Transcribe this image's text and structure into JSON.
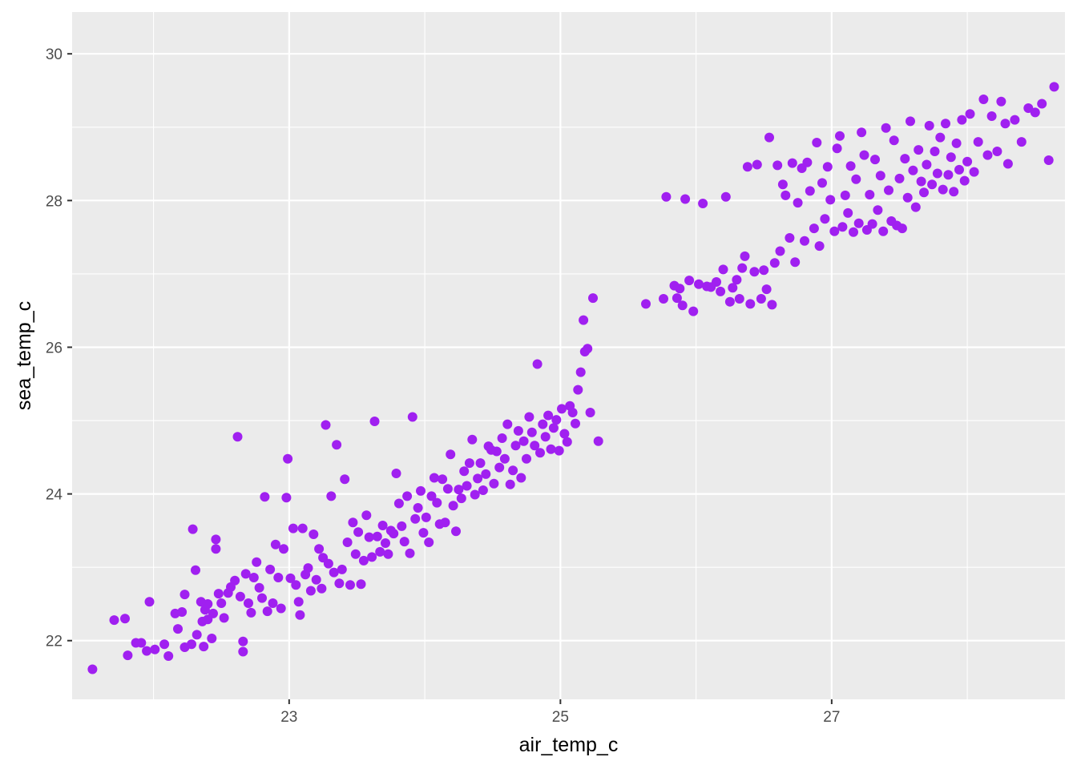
{
  "chart_data": {
    "type": "scatter",
    "title": "",
    "xlabel": "air_temp_c",
    "ylabel": "sea_temp_c",
    "xlim": [
      21.4,
      28.72
    ],
    "ylim": [
      21.2,
      30.57
    ],
    "x_ticks": [
      23,
      25,
      27
    ],
    "y_ticks": [
      22,
      24,
      26,
      28,
      30
    ],
    "grid": true,
    "legend": "none",
    "point_color": "#a020f0",
    "panel_background": "#ebebeb",
    "grid_color": "#ffffff",
    "points": [
      [
        21.55,
        21.61
      ],
      [
        21.79,
        22.3
      ],
      [
        21.71,
        22.28
      ],
      [
        21.81,
        21.8
      ],
      [
        21.87,
        21.97
      ],
      [
        21.91,
        21.97
      ],
      [
        21.95,
        21.86
      ],
      [
        21.97,
        22.53
      ],
      [
        22.01,
        21.88
      ],
      [
        22.08,
        21.95
      ],
      [
        22.11,
        21.79
      ],
      [
        22.16,
        22.37
      ],
      [
        22.18,
        22.16
      ],
      [
        22.21,
        22.39
      ],
      [
        22.23,
        21.91
      ],
      [
        22.23,
        22.63
      ],
      [
        22.28,
        21.95
      ],
      [
        22.29,
        23.52
      ],
      [
        22.31,
        22.96
      ],
      [
        22.32,
        22.08
      ],
      [
        22.35,
        22.53
      ],
      [
        22.36,
        22.26
      ],
      [
        22.37,
        21.92
      ],
      [
        22.38,
        22.42
      ],
      [
        22.4,
        22.29
      ],
      [
        22.4,
        22.5
      ],
      [
        22.43,
        22.03
      ],
      [
        22.44,
        22.37
      ],
      [
        22.46,
        23.38
      ],
      [
        22.46,
        23.25
      ],
      [
        22.48,
        22.64
      ],
      [
        22.5,
        22.51
      ],
      [
        22.52,
        22.31
      ],
      [
        22.55,
        22.65
      ],
      [
        22.57,
        22.73
      ],
      [
        22.6,
        22.82
      ],
      [
        22.62,
        24.78
      ],
      [
        22.64,
        22.6
      ],
      [
        22.66,
        21.85
      ],
      [
        22.66,
        21.99
      ],
      [
        22.68,
        22.91
      ],
      [
        22.7,
        22.51
      ],
      [
        22.72,
        22.38
      ],
      [
        22.74,
        22.86
      ],
      [
        22.76,
        23.07
      ],
      [
        22.78,
        22.72
      ],
      [
        22.8,
        22.58
      ],
      [
        22.82,
        23.96
      ],
      [
        22.84,
        22.4
      ],
      [
        22.86,
        22.97
      ],
      [
        22.88,
        22.51
      ],
      [
        22.9,
        23.31
      ],
      [
        22.92,
        22.86
      ],
      [
        22.94,
        22.44
      ],
      [
        22.96,
        23.25
      ],
      [
        22.98,
        23.95
      ],
      [
        22.99,
        24.48
      ],
      [
        23.01,
        22.85
      ],
      [
        23.03,
        23.53
      ],
      [
        23.05,
        22.76
      ],
      [
        23.07,
        22.53
      ],
      [
        23.08,
        22.35
      ],
      [
        23.1,
        23.53
      ],
      [
        23.12,
        22.9
      ],
      [
        23.14,
        22.99
      ],
      [
        23.16,
        22.68
      ],
      [
        23.18,
        23.45
      ],
      [
        23.2,
        22.83
      ],
      [
        23.22,
        23.25
      ],
      [
        23.24,
        22.71
      ],
      [
        23.25,
        23.13
      ],
      [
        23.27,
        24.94
      ],
      [
        23.29,
        23.05
      ],
      [
        23.31,
        23.97
      ],
      [
        23.33,
        22.93
      ],
      [
        23.35,
        24.67
      ],
      [
        23.37,
        22.78
      ],
      [
        23.39,
        22.97
      ],
      [
        23.41,
        24.2
      ],
      [
        23.43,
        23.34
      ],
      [
        23.45,
        22.76
      ],
      [
        23.47,
        23.61
      ],
      [
        23.49,
        23.18
      ],
      [
        23.51,
        23.48
      ],
      [
        23.53,
        22.77
      ],
      [
        23.55,
        23.09
      ],
      [
        23.57,
        23.71
      ],
      [
        23.59,
        23.41
      ],
      [
        23.61,
        23.14
      ],
      [
        23.63,
        24.99
      ],
      [
        23.65,
        23.42
      ],
      [
        23.67,
        23.21
      ],
      [
        23.69,
        23.57
      ],
      [
        23.71,
        23.33
      ],
      [
        23.73,
        23.18
      ],
      [
        23.75,
        23.5
      ],
      [
        23.77,
        23.46
      ],
      [
        23.79,
        24.28
      ],
      [
        23.81,
        23.87
      ],
      [
        23.83,
        23.56
      ],
      [
        23.85,
        23.35
      ],
      [
        23.87,
        23.97
      ],
      [
        23.89,
        23.19
      ],
      [
        23.91,
        25.05
      ],
      [
        23.93,
        23.66
      ],
      [
        23.95,
        23.81
      ],
      [
        23.97,
        24.04
      ],
      [
        23.99,
        23.47
      ],
      [
        24.01,
        23.68
      ],
      [
        24.03,
        23.34
      ],
      [
        24.05,
        23.97
      ],
      [
        24.07,
        24.22
      ],
      [
        24.09,
        23.88
      ],
      [
        24.11,
        23.59
      ],
      [
        24.13,
        24.2
      ],
      [
        24.15,
        23.61
      ],
      [
        24.17,
        24.07
      ],
      [
        24.19,
        24.54
      ],
      [
        24.21,
        23.84
      ],
      [
        24.23,
        23.49
      ],
      [
        24.25,
        24.06
      ],
      [
        24.27,
        23.94
      ],
      [
        24.29,
        24.31
      ],
      [
        24.31,
        24.11
      ],
      [
        24.33,
        24.42
      ],
      [
        24.35,
        24.74
      ],
      [
        24.37,
        23.99
      ],
      [
        24.39,
        24.21
      ],
      [
        24.41,
        24.42
      ],
      [
        24.43,
        24.05
      ],
      [
        24.45,
        24.27
      ],
      [
        24.47,
        24.65
      ],
      [
        24.49,
        24.6
      ],
      [
        24.51,
        24.14
      ],
      [
        24.53,
        24.58
      ],
      [
        24.55,
        24.36
      ],
      [
        24.57,
        24.76
      ],
      [
        24.59,
        24.48
      ],
      [
        24.61,
        24.95
      ],
      [
        24.63,
        24.13
      ],
      [
        24.65,
        24.32
      ],
      [
        24.67,
        24.66
      ],
      [
        24.69,
        24.86
      ],
      [
        24.71,
        24.22
      ],
      [
        24.73,
        24.72
      ],
      [
        24.75,
        24.48
      ],
      [
        24.77,
        25.05
      ],
      [
        24.79,
        24.84
      ],
      [
        24.81,
        24.66
      ],
      [
        24.83,
        25.77
      ],
      [
        24.85,
        24.56
      ],
      [
        24.87,
        24.95
      ],
      [
        24.89,
        24.78
      ],
      [
        24.91,
        25.07
      ],
      [
        24.93,
        24.61
      ],
      [
        24.95,
        24.9
      ],
      [
        24.97,
        25.01
      ],
      [
        24.99,
        24.59
      ],
      [
        25.01,
        25.16
      ],
      [
        25.03,
        24.82
      ],
      [
        25.05,
        24.71
      ],
      [
        25.07,
        25.2
      ],
      [
        25.09,
        25.11
      ],
      [
        25.11,
        24.96
      ],
      [
        25.13,
        25.42
      ],
      [
        25.15,
        25.66
      ],
      [
        25.17,
        26.37
      ],
      [
        25.18,
        25.94
      ],
      [
        25.2,
        25.98
      ],
      [
        25.22,
        25.11
      ],
      [
        25.24,
        26.67
      ],
      [
        25.28,
        24.72
      ],
      [
        25.63,
        26.59
      ],
      [
        25.76,
        26.66
      ],
      [
        25.78,
        28.05
      ],
      [
        25.84,
        26.84
      ],
      [
        25.86,
        26.67
      ],
      [
        25.88,
        26.8
      ],
      [
        25.9,
        26.57
      ],
      [
        25.92,
        28.02
      ],
      [
        25.95,
        26.91
      ],
      [
        25.98,
        26.49
      ],
      [
        26.02,
        26.86
      ],
      [
        26.05,
        27.96
      ],
      [
        26.08,
        26.83
      ],
      [
        26.11,
        26.82
      ],
      [
        26.15,
        26.89
      ],
      [
        26.18,
        26.76
      ],
      [
        26.2,
        27.06
      ],
      [
        26.22,
        28.05
      ],
      [
        26.25,
        26.62
      ],
      [
        26.27,
        26.81
      ],
      [
        26.3,
        26.92
      ],
      [
        26.32,
        26.66
      ],
      [
        26.34,
        27.08
      ],
      [
        26.36,
        27.24
      ],
      [
        26.38,
        28.46
      ],
      [
        26.4,
        26.59
      ],
      [
        26.43,
        27.03
      ],
      [
        26.45,
        28.49
      ],
      [
        26.48,
        26.66
      ],
      [
        26.5,
        27.05
      ],
      [
        26.52,
        26.79
      ],
      [
        26.54,
        28.86
      ],
      [
        26.56,
        26.58
      ],
      [
        26.58,
        27.15
      ],
      [
        26.6,
        28.48
      ],
      [
        26.62,
        27.31
      ],
      [
        26.64,
        28.22
      ],
      [
        26.66,
        28.07
      ],
      [
        26.69,
        27.49
      ],
      [
        26.71,
        28.51
      ],
      [
        26.73,
        27.16
      ],
      [
        26.75,
        27.97
      ],
      [
        26.78,
        28.44
      ],
      [
        26.8,
        27.45
      ],
      [
        26.82,
        28.52
      ],
      [
        26.84,
        28.13
      ],
      [
        26.87,
        27.62
      ],
      [
        26.89,
        28.79
      ],
      [
        26.91,
        27.38
      ],
      [
        26.93,
        28.24
      ],
      [
        26.95,
        27.75
      ],
      [
        26.97,
        28.46
      ],
      [
        26.99,
        28.01
      ],
      [
        27.02,
        27.58
      ],
      [
        27.04,
        28.71
      ],
      [
        27.06,
        28.88
      ],
      [
        27.08,
        27.64
      ],
      [
        27.1,
        28.07
      ],
      [
        27.12,
        27.83
      ],
      [
        27.14,
        28.47
      ],
      [
        27.16,
        27.57
      ],
      [
        27.18,
        28.29
      ],
      [
        27.2,
        27.69
      ],
      [
        27.22,
        28.93
      ],
      [
        27.24,
        28.62
      ],
      [
        27.26,
        27.6
      ],
      [
        27.28,
        28.08
      ],
      [
        27.3,
        27.68
      ],
      [
        27.32,
        28.56
      ],
      [
        27.34,
        27.87
      ],
      [
        27.36,
        28.34
      ],
      [
        27.38,
        27.58
      ],
      [
        27.4,
        28.99
      ],
      [
        27.42,
        28.14
      ],
      [
        27.44,
        27.72
      ],
      [
        27.46,
        28.82
      ],
      [
        27.48,
        27.66
      ],
      [
        27.5,
        28.3
      ],
      [
        27.52,
        27.62
      ],
      [
        27.54,
        28.57
      ],
      [
        27.56,
        28.04
      ],
      [
        27.58,
        29.08
      ],
      [
        27.6,
        28.41
      ],
      [
        27.62,
        27.91
      ],
      [
        27.64,
        28.69
      ],
      [
        27.66,
        28.26
      ],
      [
        27.68,
        28.11
      ],
      [
        27.7,
        28.49
      ],
      [
        27.72,
        29.02
      ],
      [
        27.74,
        28.22
      ],
      [
        27.76,
        28.67
      ],
      [
        27.78,
        28.37
      ],
      [
        27.8,
        28.86
      ],
      [
        27.82,
        28.15
      ],
      [
        27.84,
        29.05
      ],
      [
        27.86,
        28.35
      ],
      [
        27.88,
        28.59
      ],
      [
        27.9,
        28.12
      ],
      [
        27.92,
        28.78
      ],
      [
        27.94,
        28.42
      ],
      [
        27.96,
        29.1
      ],
      [
        27.98,
        28.27
      ],
      [
        28.0,
        28.53
      ],
      [
        28.02,
        29.18
      ],
      [
        28.05,
        28.39
      ],
      [
        28.08,
        28.8
      ],
      [
        28.12,
        29.38
      ],
      [
        28.15,
        28.62
      ],
      [
        28.18,
        29.15
      ],
      [
        28.22,
        28.67
      ],
      [
        28.25,
        29.35
      ],
      [
        28.28,
        29.05
      ],
      [
        28.3,
        28.5
      ],
      [
        28.35,
        29.1
      ],
      [
        28.4,
        28.8
      ],
      [
        28.45,
        29.26
      ],
      [
        28.5,
        29.2
      ],
      [
        28.55,
        29.32
      ],
      [
        28.6,
        28.55
      ],
      [
        28.64,
        29.55
      ]
    ]
  }
}
